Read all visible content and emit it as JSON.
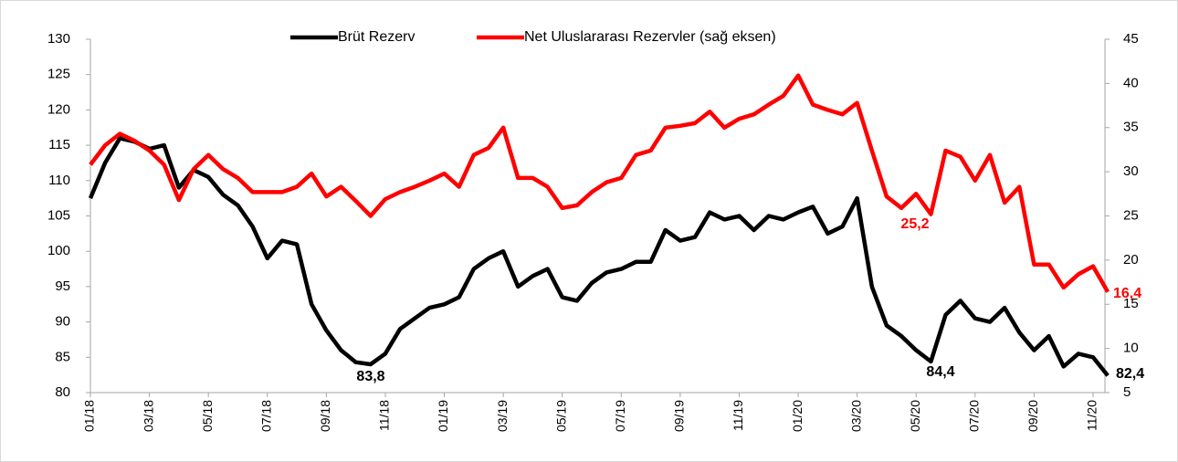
{
  "chart_data": {
    "type": "line",
    "categories": [
      "01/18",
      null,
      null,
      null,
      "03/18",
      null,
      null,
      null,
      "05/18",
      null,
      null,
      null,
      "07/18",
      null,
      null,
      null,
      "09/18",
      null,
      null,
      null,
      "11/18",
      null,
      null,
      null,
      "01/19",
      null,
      null,
      null,
      "03/19",
      null,
      null,
      null,
      "05/19",
      null,
      null,
      null,
      "07/19",
      null,
      null,
      null,
      "09/19",
      null,
      null,
      null,
      "11/19",
      null,
      null,
      null,
      "01/20",
      null,
      null,
      null,
      "03/20",
      null,
      null,
      null,
      "05/20",
      null,
      null,
      null,
      "07/20",
      null,
      null,
      null,
      "09/20",
      null,
      null,
      null,
      "11/20",
      null
    ],
    "series": [
      {
        "name": "Brüt Rezerv",
        "color": "#000000",
        "values": [
          107.5,
          112.5,
          116,
          115.5,
          114.5,
          115,
          109,
          111.5,
          110.5,
          108,
          106.5,
          103.5,
          99,
          101.5,
          101,
          92.5,
          88.8,
          86,
          84.3,
          84,
          85.5,
          89,
          90.5,
          92,
          92.5,
          93.5,
          97.5,
          99,
          100,
          95,
          96.5,
          97.5,
          93.5,
          93,
          95.5,
          97,
          97.5,
          98.5,
          98.5,
          103,
          101.5,
          102,
          105.5,
          104.5,
          105,
          103,
          105,
          104.5,
          105.5,
          106.3,
          102.5,
          103.5,
          107.5,
          95,
          89.5,
          88,
          86,
          84.4,
          91,
          93,
          90.5,
          90,
          92,
          88.5,
          86,
          88,
          83.7,
          85.5,
          85,
          82.4
        ]
      },
      {
        "name": "Net Uluslararası Rezervler (sağ eksen)",
        "color": "#ff0000",
        "axis": "y2",
        "values": [
          30.8,
          33,
          34.3,
          33.5,
          32.4,
          30.8,
          26.8,
          30.3,
          31.9,
          30.3,
          29.3,
          27.7,
          27.7,
          27.7,
          28.3,
          29.8,
          27.2,
          28.3,
          26.7,
          25,
          26.9,
          27.7,
          28.3,
          29,
          29.8,
          28.3,
          31.9,
          32.7,
          35,
          29.3,
          29.3,
          28.3,
          25.9,
          26.2,
          27.7,
          28.8,
          29.3,
          31.9,
          32.4,
          35,
          35.2,
          35.5,
          36.8,
          35,
          36,
          36.5,
          37.6,
          38.6,
          40.9,
          37.6,
          37,
          36.5,
          37.8,
          32.4,
          27.2,
          25.9,
          27.5,
          25.2,
          32.4,
          31.7,
          29,
          31.9,
          26.5,
          28.3,
          19.5,
          19.5,
          16.9,
          18.4,
          19.3,
          16.4
        ]
      }
    ],
    "annotations": [
      {
        "text": "83,8",
        "color": "#000000"
      },
      {
        "text": "84,4",
        "color": "#000000"
      },
      {
        "text": "82,4",
        "color": "#000000"
      },
      {
        "text": "25,2",
        "color": "#ff0000"
      },
      {
        "text": "16,4",
        "color": "#ff0000"
      }
    ],
    "ylim": [
      80,
      130
    ],
    "yticks": [
      80,
      85,
      90,
      95,
      100,
      105,
      110,
      115,
      120,
      125,
      130
    ],
    "y2lim": [
      5,
      45
    ],
    "y2ticks": [
      5,
      10,
      15,
      20,
      25,
      30,
      35,
      40,
      45
    ]
  }
}
